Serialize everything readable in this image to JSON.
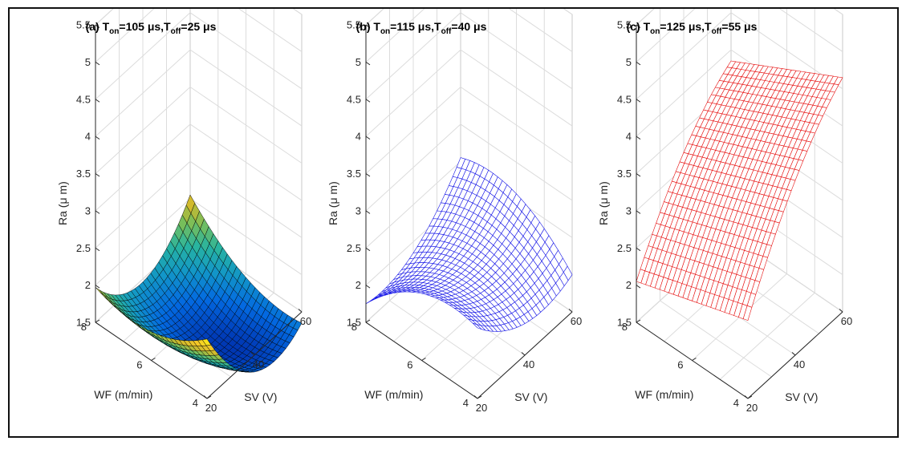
{
  "chart_data": [
    {
      "type": "surface",
      "title_prefix": "(a) T",
      "ton_sub": "on",
      "ton_value": "=105 μs,T",
      "toff_sub": "off",
      "toff_value": "=25 μs",
      "style": "colormap-shaded",
      "xlabel": "SV (V)",
      "ylabel": "WF (m/min)",
      "zlabel": "Ra (μ m)",
      "x_ticks": [
        "20",
        "40",
        "60"
      ],
      "y_ticks": [
        "4",
        "6",
        "8"
      ],
      "z_ticks": [
        "1.5",
        "2",
        "2.5",
        "3",
        "3.5",
        "4",
        "4.5",
        "5",
        "5.5"
      ],
      "xlim": [
        20,
        60
      ],
      "ylim": [
        4,
        8
      ],
      "zlim": [
        1.5,
        5.5
      ],
      "corners_Ra": {
        "SV20_WF4": 2.3,
        "SV20_WF8": 1.97,
        "SV60_WF8": 2.05,
        "SV60_WF4": 1.35
      },
      "curvature": {
        "along_SV": -0.55,
        "along_WF": -0.25
      }
    },
    {
      "type": "surface",
      "title_prefix": "(b) T",
      "ton_sub": "on",
      "ton_value": "=115 μs,T",
      "toff_sub": "off",
      "toff_value": "=40 μs",
      "style": "mesh",
      "mesh_color": "#1515e6",
      "xlabel": "SV (V)",
      "ylabel": "WF (m/min)",
      "zlabel": "Ra (μ m)",
      "x_ticks": [
        "20",
        "40",
        "60"
      ],
      "y_ticks": [
        "4",
        "6",
        "8"
      ],
      "z_ticks": [
        "1.5",
        "2",
        "2.5",
        "3",
        "3.5",
        "4",
        "4.5",
        "5",
        "5.5"
      ],
      "xlim": [
        20,
        60
      ],
      "ylim": [
        4,
        8
      ],
      "zlim": [
        1.5,
        5.5
      ],
      "corners_Ra": {
        "SV20_WF4": 2.45,
        "SV20_WF8": 1.75,
        "SV60_WF8": 2.55,
        "SV60_WF4": 2.0
      },
      "curvature": {
        "along_SV": -0.3,
        "along_WF": 0.3
      }
    },
    {
      "type": "surface",
      "title_prefix": "(c) T",
      "ton_sub": "on",
      "ton_value": "=125 μs,T",
      "toff_sub": "off",
      "toff_value": "=55 μs",
      "style": "mesh",
      "mesh_color": "#e60e0e",
      "xlabel": "SV (V)",
      "ylabel": "WF (m/min)",
      "zlabel": "Ra (μ m)",
      "x_ticks": [
        "20",
        "40",
        "60"
      ],
      "y_ticks": [
        "4",
        "6",
        "8"
      ],
      "z_ticks": [
        "1.5",
        "2",
        "2.5",
        "3",
        "3.5",
        "4",
        "4.5",
        "5",
        "5.5"
      ],
      "xlim": [
        20,
        60
      ],
      "ylim": [
        4,
        8
      ],
      "zlim": [
        1.5,
        5.5
      ],
      "corners_Ra": {
        "SV20_WF4": 2.55,
        "SV20_WF8": 2.05,
        "SV60_WF8": 3.85,
        "SV60_WF4": 4.65
      },
      "curvature": {
        "along_SV": 0.25,
        "along_WF": 0.0
      }
    }
  ]
}
